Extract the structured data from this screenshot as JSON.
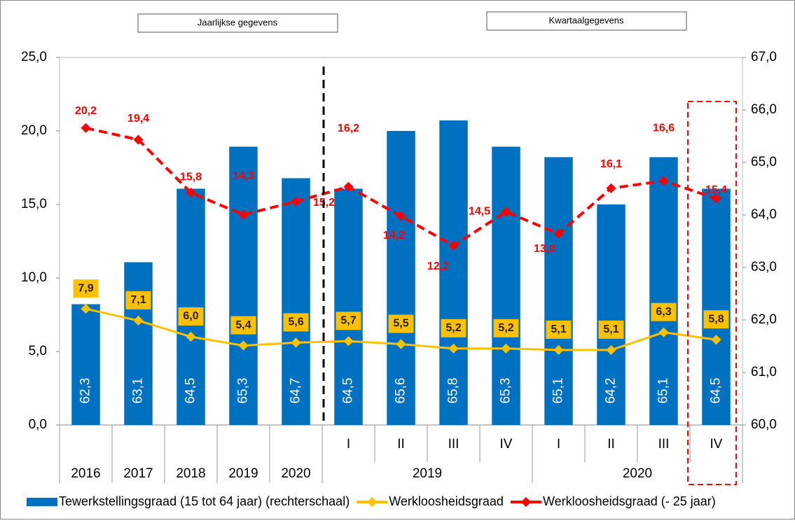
{
  "chart_data": {
    "type": "bar-line",
    "annotations": [
      "Jaarlijkse gegevens",
      "Kwartaalgegevens"
    ],
    "categories": [
      "2016",
      "2017",
      "2018",
      "2019",
      "2020",
      "I",
      "II",
      "III",
      "IV",
      "I",
      "II",
      "III",
      "IV"
    ],
    "category_group": [
      null,
      null,
      null,
      null,
      null,
      "2019",
      "2019",
      "2019",
      "2019",
      "2020",
      "2020",
      "2020",
      "2020"
    ],
    "ylim": [
      0,
      25
    ],
    "yticks": [
      {
        "value": 0,
        "label": "0,0"
      },
      {
        "value": 5,
        "label": "5,0"
      },
      {
        "value": 10,
        "label": "10,0"
      },
      {
        "value": 15,
        "label": "15,0"
      },
      {
        "value": 20,
        "label": "20,0"
      },
      {
        "value": 25,
        "label": "25,0"
      }
    ],
    "y2lim": [
      60,
      67
    ],
    "y2ticks": [
      {
        "value": 60,
        "label": "60,0"
      },
      {
        "value": 61,
        "label": "61,0"
      },
      {
        "value": 62,
        "label": "62,0"
      },
      {
        "value": 63,
        "label": "63,0"
      },
      {
        "value": 64,
        "label": "64,0"
      },
      {
        "value": 65,
        "label": "65,0"
      },
      {
        "value": 66,
        "label": "66,0"
      },
      {
        "value": 67,
        "label": "67,0"
      }
    ],
    "series": [
      {
        "name": "Tewerkstellingsgraad (15 tot 64 jaar) (rechterschaal)",
        "type": "bar",
        "axis": "y2",
        "color": "#0070c0",
        "values": [
          62.3,
          63.1,
          64.5,
          65.3,
          64.7,
          64.5,
          65.6,
          65.8,
          65.3,
          65.1,
          64.2,
          65.1,
          64.5
        ],
        "value_labels": [
          "62,3",
          "63,1",
          "64,5",
          "65,3",
          "64,7",
          "64,5",
          "65,6",
          "65,8",
          "65,3",
          "65,1",
          "64,2",
          "65,1",
          "64,5"
        ]
      },
      {
        "name": "Werkloosheidsgraad",
        "type": "line",
        "color": "#ffc000",
        "values": [
          7.9,
          7.1,
          6.0,
          5.4,
          5.6,
          5.7,
          5.5,
          5.2,
          5.2,
          5.1,
          5.1,
          6.3,
          5.8
        ],
        "value_labels": [
          "7,9",
          "7,1",
          "6,0",
          "5,4",
          "5,6",
          "5,7",
          "5,5",
          "5,2",
          "5,2",
          "5,1",
          "5,1",
          "6,3",
          "5,8"
        ]
      },
      {
        "name": "Werkloosheidsgraad (- 25 jaar)",
        "type": "line",
        "dashed": true,
        "color": "#ff0000",
        "values": [
          20.2,
          19.4,
          15.8,
          14.3,
          15.2,
          16.2,
          14.2,
          12.2,
          14.5,
          13.0,
          16.1,
          16.6,
          15.4
        ],
        "value_labels": [
          "20,2",
          "19,4",
          "15,8",
          "14,3",
          "15,2",
          "16,2",
          "14,2",
          "12,2",
          "14,5",
          "13,0",
          "16,1",
          "16,6",
          "15,4"
        ]
      }
    ]
  }
}
